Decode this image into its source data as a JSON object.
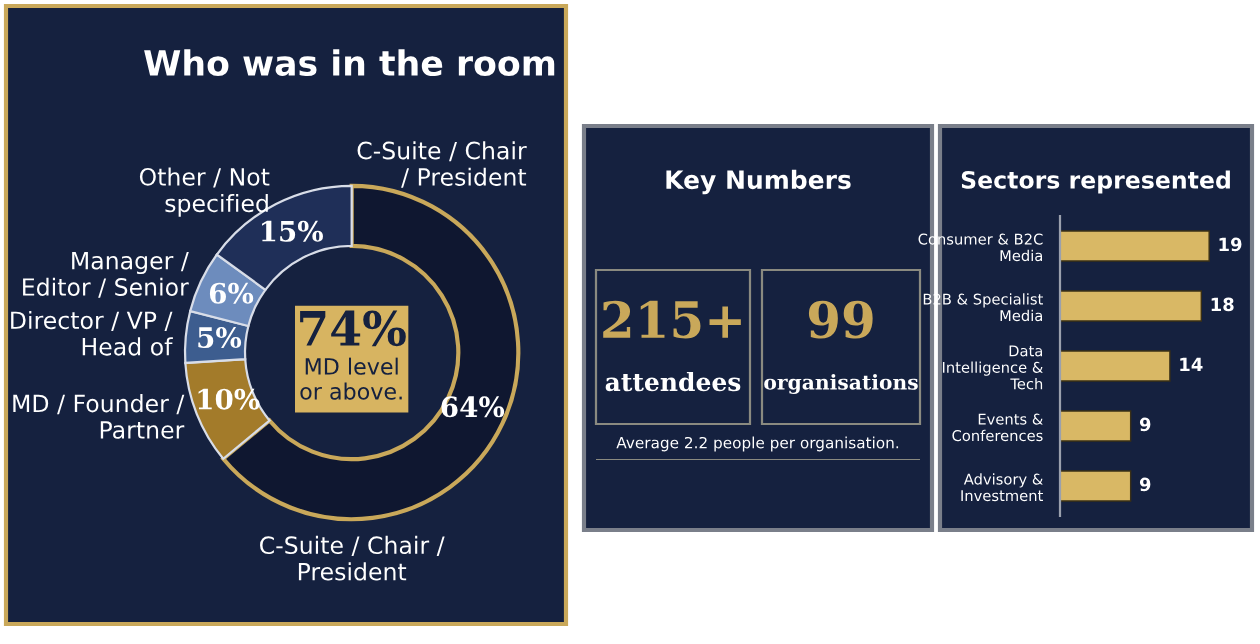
{
  "chart_data": [
    {
      "type": "donut",
      "title": "Who was in the room",
      "categories": [
        "C-Suite / Chair / President",
        "MD / Founder / Partner",
        "Director / VP / Head of",
        "Manager / Editor / Senior",
        "Other / Not specified"
      ],
      "values": [
        64,
        10,
        5,
        6,
        15
      ],
      "value_labels": [
        "64%",
        "10%",
        "5%",
        "6%",
        "15%"
      ],
      "colors": [
        "#0f1730",
        "#a37b2a",
        "#3d5d8f",
        "#6d8cbd",
        "#1f2f58"
      ],
      "annotations": [
        "C-Suite / Chair / President",
        "74%",
        "MD level or above."
      ],
      "legend": false
    },
    {
      "type": "other",
      "title": "Key Numbers",
      "annotations": [
        "215+",
        "attendees",
        "99",
        "organisations",
        "Average 2.2 people per organisation."
      ]
    },
    {
      "type": "bar",
      "title": "Sectors represented",
      "orientation": "horizontal",
      "categories": [
        "Consumer & B2C Media",
        "B2B & Specialist Media",
        "Data Intelligence & Tech",
        "Events & Conferences",
        "Advisory & Investment"
      ],
      "values": [
        19,
        18,
        14,
        9,
        9
      ],
      "color": "#d9b865",
      "data_labels": true,
      "tick_labels": "y"
    }
  ]
}
